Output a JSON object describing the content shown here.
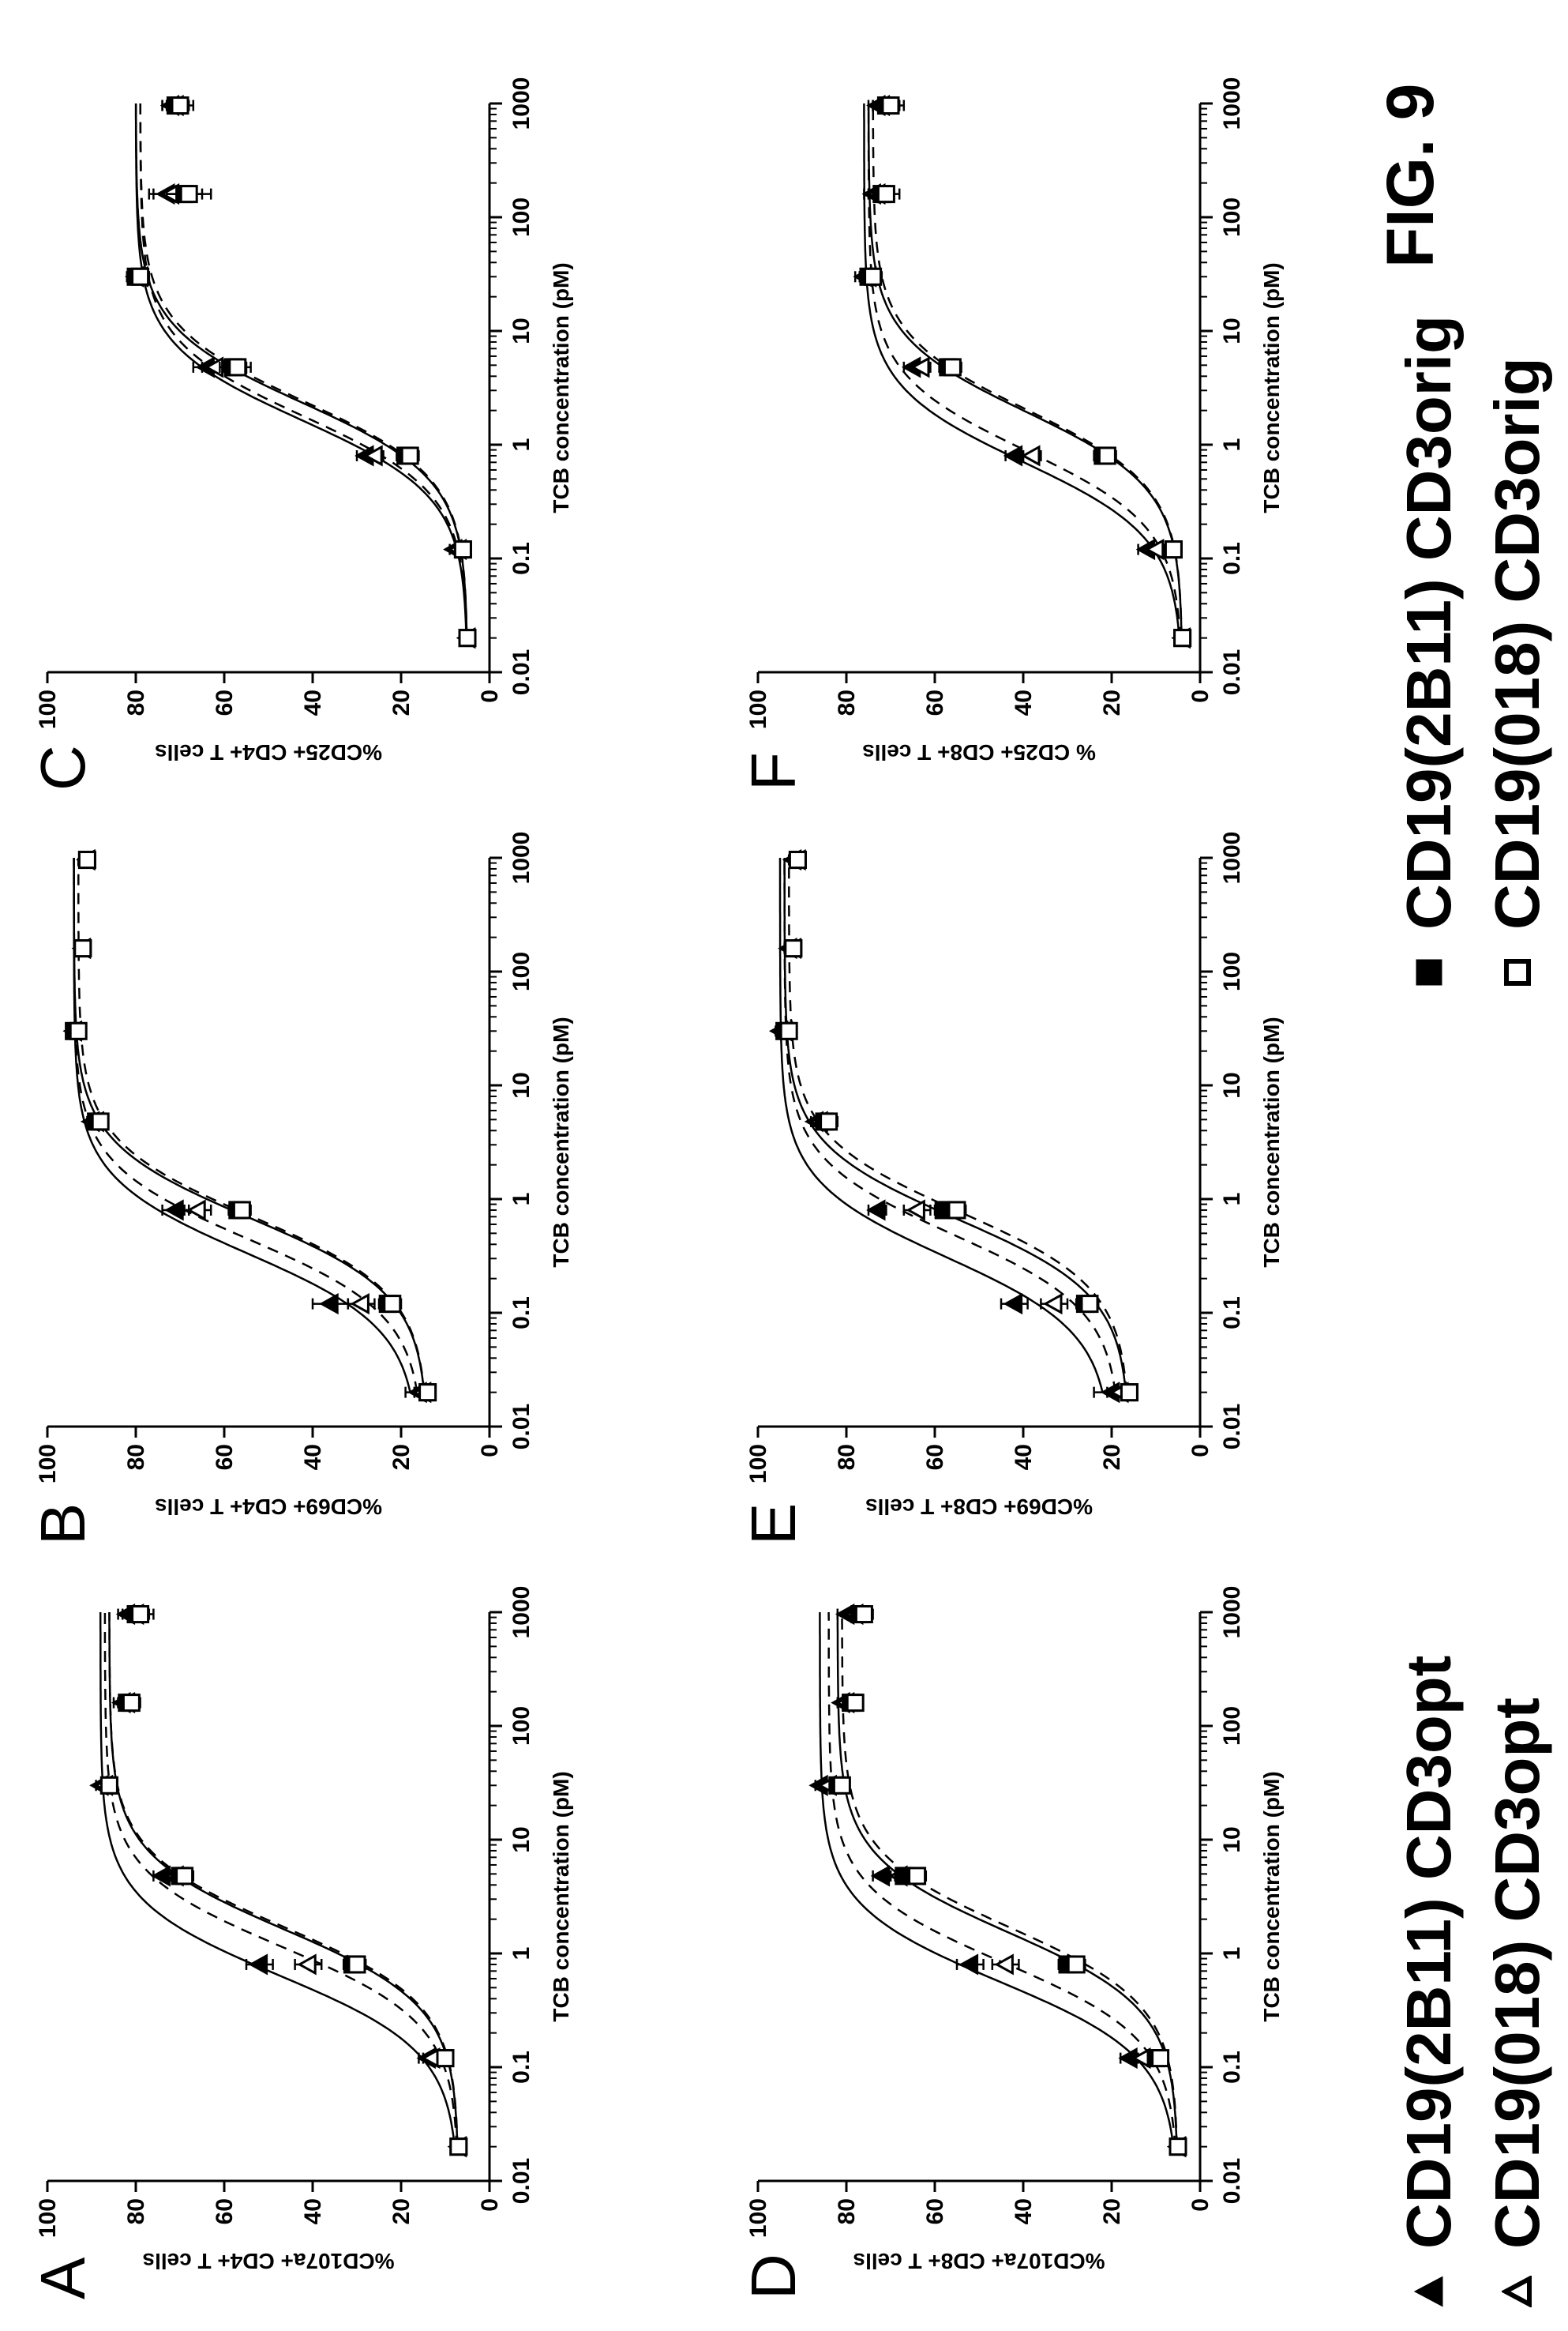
{
  "figure_label": "FIG. 9",
  "legend": [
    {
      "label": "CD19(2B11) CD3opt",
      "marker": "filled-triangle"
    },
    {
      "label": "CD19(018) CD3opt",
      "marker": "open-triangle"
    },
    {
      "label": "CD19(2B11) CD3orig",
      "marker": "filled-square"
    },
    {
      "label": "CD19(018) CD3orig",
      "marker": "open-square"
    }
  ],
  "colors": {
    "ink": "#000000",
    "open_fill": "#ffffff"
  },
  "chart_data": [
    {
      "panel": "A",
      "type": "scatter",
      "xscale": "log",
      "xlabel": "TCB concentration (pM)",
      "ylabel": "%CD107a+ CD4+ T cells",
      "xlim": [
        0.01,
        1000
      ],
      "ylim": [
        0,
        100
      ],
      "xticks": [
        "0.01",
        "0.1",
        "1",
        "10",
        "100",
        "1000"
      ],
      "yticks": [
        "0",
        "20",
        "40",
        "60",
        "80",
        "100"
      ],
      "x": [
        0.02,
        0.12,
        0.8,
        4.8,
        30,
        160,
        960
      ],
      "series": [
        {
          "values": [
            7,
            14,
            52,
            74,
            88,
            83,
            82
          ],
          "err": [
            1,
            2,
            3,
            2,
            1,
            2,
            2
          ]
        },
        {
          "values": [
            7,
            13,
            41,
            71,
            87,
            82,
            80
          ],
          "err": [
            1,
            2,
            3,
            2,
            1,
            2,
            2
          ]
        },
        {
          "values": [
            7,
            10,
            31,
            70,
            86,
            82,
            80
          ],
          "err": [
            1,
            1,
            2,
            2,
            1,
            2,
            3
          ]
        },
        {
          "values": [
            7,
            10,
            30,
            69,
            86,
            81,
            79
          ],
          "err": [
            1,
            1,
            2,
            2,
            1,
            2,
            3
          ]
        }
      ]
    },
    {
      "panel": "B",
      "type": "scatter",
      "xscale": "log",
      "xlabel": "TCB concentration (pM)",
      "ylabel": "%CD69+ CD4+ T cells",
      "xlim": [
        0.01,
        1000
      ],
      "ylim": [
        0,
        100
      ],
      "xticks": [
        "0.01",
        "0.1",
        "1",
        "10",
        "100",
        "1000"
      ],
      "yticks": [
        "0",
        "20",
        "40",
        "60",
        "80",
        "100"
      ],
      "x": [
        0.02,
        0.12,
        0.8,
        4.8,
        30,
        160,
        960
      ],
      "series": [
        {
          "values": [
            16,
            36,
            71,
            90,
            94,
            92,
            91
          ],
          "err": [
            3,
            4,
            3,
            1,
            1,
            1,
            1
          ]
        },
        {
          "values": [
            15,
            29,
            66,
            89,
            94,
            92,
            91
          ],
          "err": [
            2,
            3,
            3,
            1,
            1,
            1,
            1
          ]
        },
        {
          "values": [
            14,
            23,
            57,
            89,
            94,
            92,
            91
          ],
          "err": [
            1,
            2,
            2,
            1,
            1,
            1,
            1
          ]
        },
        {
          "values": [
            14,
            22,
            56,
            88,
            93,
            92,
            91
          ],
          "err": [
            1,
            2,
            2,
            1,
            1,
            1,
            1
          ]
        }
      ]
    },
    {
      "panel": "C",
      "type": "scatter",
      "xscale": "log",
      "xlabel": "TCB concentration (pM)",
      "ylabel": "%CD25+ CD4+ T cells",
      "xlim": [
        0.01,
        1000
      ],
      "ylim": [
        0,
        100
      ],
      "xticks": [
        "0.01",
        "0.1",
        "1",
        "10",
        "100",
        "1000"
      ],
      "yticks": [
        "0",
        "20",
        "40",
        "60",
        "80",
        "100"
      ],
      "x": [
        0.02,
        0.12,
        0.8,
        4.8,
        30,
        160,
        960
      ],
      "series": [
        {
          "values": [
            5,
            8,
            28,
            64,
            80,
            73,
            72
          ],
          "err": [
            1,
            1,
            2,
            3,
            2,
            4,
            2
          ]
        },
        {
          "values": [
            5,
            7,
            26,
            62,
            79,
            72,
            71
          ],
          "err": [
            1,
            1,
            2,
            3,
            2,
            4,
            2
          ]
        },
        {
          "values": [
            5,
            6,
            19,
            58,
            80,
            69,
            71
          ],
          "err": [
            1,
            1,
            2,
            3,
            2,
            4,
            3
          ]
        },
        {
          "values": [
            5,
            6,
            18,
            57,
            79,
            68,
            70
          ],
          "err": [
            1,
            1,
            2,
            3,
            2,
            5,
            3
          ]
        }
      ]
    },
    {
      "panel": "D",
      "type": "scatter",
      "xscale": "log",
      "xlabel": "TCB concentration (pM)",
      "ylabel": "%CD107a+ CD8+ T cells",
      "xlim": [
        0.01,
        1000
      ],
      "ylim": [
        0,
        100
      ],
      "xticks": [
        "0.01",
        "0.1",
        "1",
        "10",
        "100",
        "1000"
      ],
      "yticks": [
        "0",
        "20",
        "40",
        "60",
        "80",
        "100"
      ],
      "x": [
        0.02,
        0.12,
        0.8,
        4.8,
        30,
        160,
        960
      ],
      "series": [
        {
          "values": [
            5,
            16,
            52,
            72,
            86,
            81,
            80
          ],
          "err": [
            1,
            2,
            3,
            2,
            1,
            1,
            2
          ]
        },
        {
          "values": [
            5,
            13,
            44,
            68,
            84,
            80,
            78
          ],
          "err": [
            1,
            2,
            3,
            2,
            1,
            1,
            2
          ]
        },
        {
          "values": [
            5,
            10,
            30,
            67,
            82,
            79,
            77
          ],
          "err": [
            1,
            1,
            2,
            2,
            1,
            1,
            2
          ]
        },
        {
          "values": [
            5,
            9,
            28,
            64,
            81,
            78,
            76
          ],
          "err": [
            1,
            1,
            2,
            2,
            1,
            1,
            2
          ]
        }
      ]
    },
    {
      "panel": "E",
      "type": "scatter",
      "xscale": "log",
      "xlabel": "TCB concentration (pM)",
      "ylabel": "%CD69+ CD8+ T cells",
      "xlim": [
        0.01,
        1000
      ],
      "ylim": [
        0,
        100
      ],
      "xticks": [
        "0.01",
        "0.1",
        "1",
        "10",
        "100",
        "1000"
      ],
      "yticks": [
        "0",
        "20",
        "40",
        "60",
        "80",
        "100"
      ],
      "x": [
        0.02,
        0.12,
        0.8,
        4.8,
        30,
        160,
        960
      ],
      "series": [
        {
          "values": [
            20,
            42,
            73,
            87,
            95,
            93,
            92
          ],
          "err": [
            4,
            3,
            2,
            1,
            1,
            1,
            1
          ]
        },
        {
          "values": [
            18,
            33,
            64,
            86,
            94,
            92,
            91
          ],
          "err": [
            3,
            3,
            3,
            1,
            1,
            1,
            1
          ]
        },
        {
          "values": [
            16,
            26,
            58,
            85,
            94,
            92,
            91
          ],
          "err": [
            1,
            2,
            2,
            2,
            1,
            1,
            1
          ]
        },
        {
          "values": [
            16,
            25,
            55,
            84,
            93,
            92,
            91
          ],
          "err": [
            1,
            2,
            2,
            2,
            1,
            1,
            1
          ]
        }
      ]
    },
    {
      "panel": "F",
      "type": "scatter",
      "xscale": "log",
      "xlabel": "TCB concentration (pM)",
      "ylabel": "% CD25+ CD8+ T cells",
      "xlim": [
        0.01,
        1000
      ],
      "ylim": [
        0,
        100
      ],
      "xticks": [
        "0.01",
        "0.1",
        "1",
        "10",
        "100",
        "1000"
      ],
      "yticks": [
        "0",
        "20",
        "40",
        "60",
        "80",
        "100"
      ],
      "x": [
        0.02,
        0.12,
        0.8,
        4.8,
        30,
        160,
        960
      ],
      "series": [
        {
          "values": [
            4,
            12,
            42,
            65,
            76,
            74,
            73
          ],
          "err": [
            1,
            2,
            2,
            2,
            2,
            2,
            2
          ]
        },
        {
          "values": [
            4,
            10,
            38,
            63,
            75,
            73,
            72
          ],
          "err": [
            1,
            2,
            2,
            2,
            2,
            2,
            2
          ]
        },
        {
          "values": [
            4,
            6,
            22,
            57,
            75,
            72,
            71
          ],
          "err": [
            1,
            1,
            2,
            2,
            2,
            2,
            3
          ]
        },
        {
          "values": [
            4,
            6,
            21,
            56,
            74,
            71,
            70
          ],
          "err": [
            1,
            1,
            2,
            2,
            2,
            3,
            3
          ]
        }
      ]
    }
  ]
}
